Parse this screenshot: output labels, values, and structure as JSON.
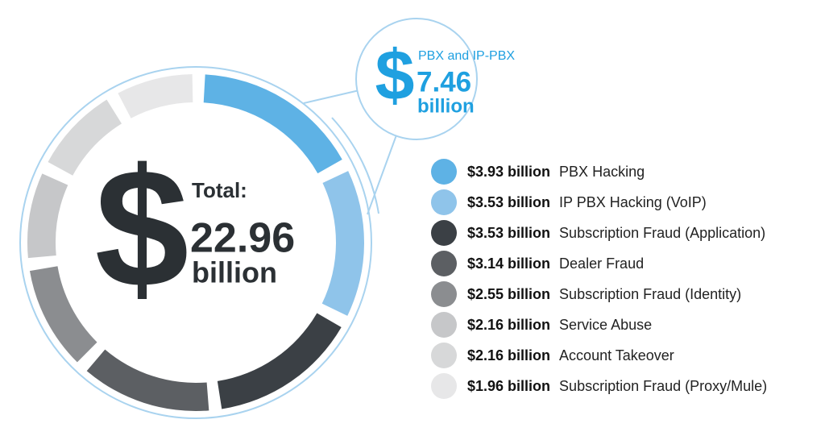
{
  "chart_data": {
    "type": "donut",
    "categories": [
      "PBX Hacking",
      "IP PBX Hacking (VoIP)",
      "Subscription Fraud (Application)",
      "Dealer Fraud",
      "Subscription Fraud (Identity)",
      "Service Abuse",
      "Account Takeover",
      "Subscription Fraud (Proxy/Mule)"
    ],
    "values": [
      3.93,
      3.53,
      3.53,
      3.14,
      2.55,
      2.16,
      2.16,
      1.96
    ],
    "value_labels": [
      "$3.93 billion",
      "$3.53 billion",
      "$3.53 billion",
      "$3.14 billion",
      "$2.55 billion",
      "$2.16 billion",
      "$2.16 billion",
      "$1.96 billion"
    ],
    "colors": [
      "#5eb2e5",
      "#8fc4ea",
      "#3b4045",
      "#5c5f63",
      "#8b8d90",
      "#c6c7c9",
      "#d7d8d9",
      "#e7e7e8"
    ],
    "center": {
      "symbol": "$",
      "label": "Total:",
      "value": 22.96,
      "unit": "billion"
    },
    "callout": {
      "symbol": "$",
      "label": "PBX and IP-PBX",
      "value": 7.46,
      "unit": "billion"
    }
  }
}
